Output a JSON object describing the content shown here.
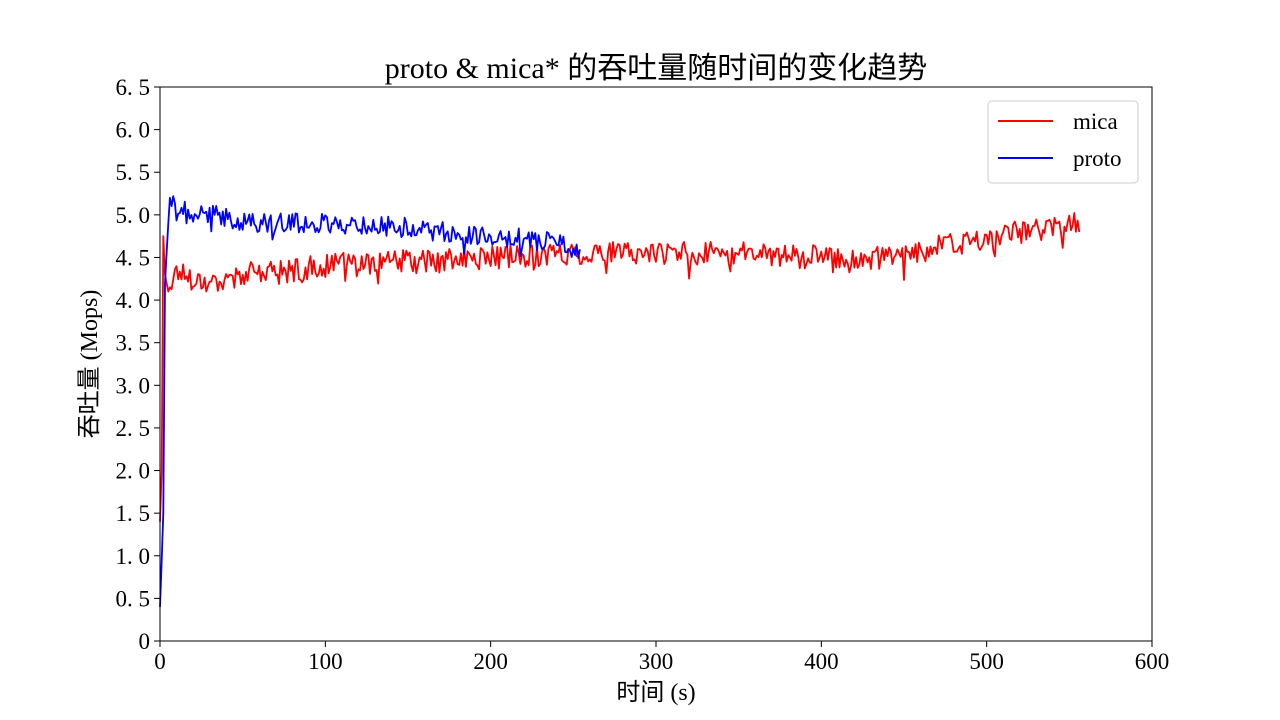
{
  "chart_data": {
    "type": "line",
    "title": "proto & mica* 的吞吐量随时间的变化趋势",
    "xlabel": "时间 (s)",
    "ylabel": "吞吐量 (Mops)",
    "xlim": [
      0,
      600
    ],
    "ylim": [
      0,
      6.5
    ],
    "xticks": [
      0,
      100,
      200,
      300,
      400,
      500,
      600
    ],
    "xtick_labels": [
      "0",
      "100",
      "200",
      "300",
      "400",
      "500",
      "600"
    ],
    "yticks": [
      0,
      0.5,
      1.0,
      1.5,
      2.0,
      2.5,
      3.0,
      3.5,
      4.0,
      4.5,
      5.0,
      5.5,
      6.0,
      6.5
    ],
    "ytick_labels": [
      "0",
      "0. 5",
      "1. 0",
      "1. 5",
      "2. 0",
      "2. 5",
      "3. 0",
      "3. 5",
      "4. 0",
      "4. 5",
      "5. 0",
      "5. 5",
      "6. 0",
      "6. 5"
    ],
    "grid": false,
    "legend_position": "top-right",
    "series": [
      {
        "name": "mica",
        "color": "#ff0000",
        "x_range": [
          0,
          556
        ],
        "anchors": [
          [
            0,
            1.4
          ],
          [
            1,
            2.0
          ],
          [
            2,
            4.75
          ],
          [
            3,
            4.3
          ],
          [
            5,
            4.1
          ],
          [
            10,
            4.35
          ],
          [
            20,
            4.25
          ],
          [
            30,
            4.2
          ],
          [
            50,
            4.3
          ],
          [
            80,
            4.35
          ],
          [
            100,
            4.4
          ],
          [
            130,
            4.45
          ],
          [
            160,
            4.45
          ],
          [
            200,
            4.5
          ],
          [
            250,
            4.55
          ],
          [
            300,
            4.55
          ],
          [
            350,
            4.55
          ],
          [
            400,
            4.5
          ],
          [
            420,
            4.45
          ],
          [
            450,
            4.55
          ],
          [
            480,
            4.65
          ],
          [
            500,
            4.7
          ],
          [
            520,
            4.8
          ],
          [
            540,
            4.85
          ],
          [
            556,
            4.9
          ]
        ],
        "noise_amplitude": 0.14,
        "seed": 17
      },
      {
        "name": "proto",
        "color": "#0000ff",
        "x_range": [
          0,
          254
        ],
        "anchors": [
          [
            0,
            0.4
          ],
          [
            2,
            1.5
          ],
          [
            3,
            4.2
          ],
          [
            5,
            4.9
          ],
          [
            6,
            5.2
          ],
          [
            10,
            5.05
          ],
          [
            30,
            5.0
          ],
          [
            60,
            4.9
          ],
          [
            100,
            4.9
          ],
          [
            150,
            4.85
          ],
          [
            200,
            4.75
          ],
          [
            230,
            4.7
          ],
          [
            245,
            4.65
          ],
          [
            254,
            4.5
          ]
        ],
        "noise_amplitude": 0.12,
        "seed": 41
      }
    ]
  }
}
